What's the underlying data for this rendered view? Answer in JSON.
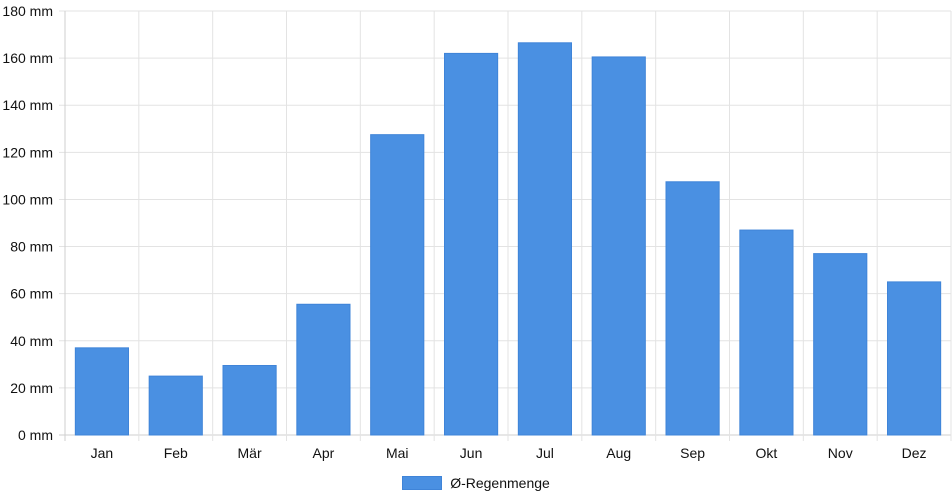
{
  "chart_data": {
    "type": "bar",
    "categories": [
      "Jan",
      "Feb",
      "Mär",
      "Apr",
      "Mai",
      "Jun",
      "Jul",
      "Aug",
      "Sep",
      "Okt",
      "Nov",
      "Dez"
    ],
    "series": [
      {
        "name": "Ø-Regenmenge",
        "values": [
          37,
          25,
          29.5,
          55.5,
          127.5,
          162,
          166.5,
          160.5,
          107.5,
          87,
          77,
          65
        ]
      }
    ],
    "y_ticks": [
      "0 mm",
      "20 mm",
      "40 mm",
      "60 mm",
      "80 mm",
      "100 mm",
      "120 mm",
      "140 mm",
      "160 mm",
      "180 mm"
    ],
    "ylim": [
      0,
      180
    ],
    "grid": true,
    "legend_position": "bottom-center",
    "colors": {
      "bar": "#4a90e2",
      "grid": "#e3e3e3",
      "axis": "#cfcfcf"
    }
  }
}
